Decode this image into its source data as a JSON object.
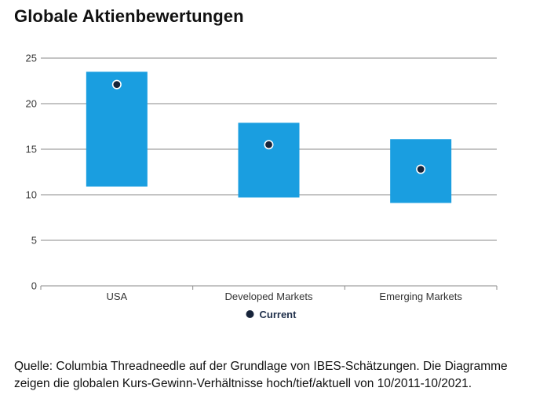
{
  "title": "Globale Aktienbewertungen",
  "source_lines": [
    "Quelle: Columbia Threadneedle auf der Grundlage von IBES-Schätzungen. Die Diagramme",
    "zeigen die globalen Kurs-Gewinn-Verhältnisse  hoch/tief/aktuell von 10/2011-10/2021."
  ],
  "colors": {
    "bar": "#1a9ee0",
    "marker": "#17243a",
    "marker_stroke": "#ffffff",
    "grid": "#8a8a8a"
  },
  "chart_data": {
    "type": "bar",
    "subtype": "floating-range",
    "categories": [
      "USA",
      "Developed Markets",
      "Emerging Markets"
    ],
    "series": [
      {
        "name": "high",
        "values": [
          23.5,
          17.9,
          16.1
        ]
      },
      {
        "name": "low",
        "values": [
          10.9,
          9.7,
          9.1
        ]
      },
      {
        "name": "Current",
        "values": [
          22.1,
          15.5,
          12.8
        ]
      }
    ],
    "y_ticks": [
      0,
      5,
      10,
      15,
      20,
      25
    ],
    "ylim": [
      0,
      25
    ],
    "grid": true,
    "legend": {
      "position": "bottom-center",
      "entries": [
        "Current"
      ]
    }
  }
}
